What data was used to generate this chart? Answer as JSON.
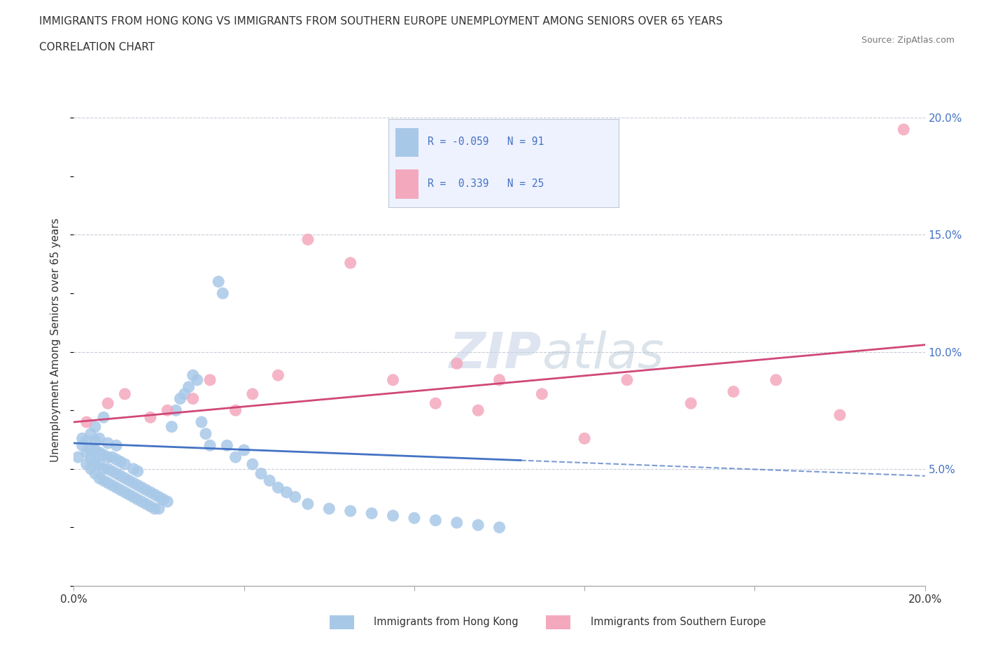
{
  "title_line1": "IMMIGRANTS FROM HONG KONG VS IMMIGRANTS FROM SOUTHERN EUROPE UNEMPLOYMENT AMONG SENIORS OVER 65 YEARS",
  "title_line2": "CORRELATION CHART",
  "source_text": "Source: ZipAtlas.com",
  "ylabel": "Unemployment Among Seniors over 65 years",
  "xlim": [
    0.0,
    0.2
  ],
  "ylim": [
    0.0,
    0.21
  ],
  "x_ticks": [
    0.0,
    0.04,
    0.08,
    0.12,
    0.16,
    0.2
  ],
  "x_tick_labels": [
    "0.0%",
    "",
    "",
    "",
    "",
    "20.0%"
  ],
  "y_ticks_right": [
    0.05,
    0.1,
    0.15,
    0.2
  ],
  "y_tick_labels_right": [
    "5.0%",
    "10.0%",
    "15.0%",
    "20.0%"
  ],
  "hk_color": "#a8c8e8",
  "se_color": "#f4a8be",
  "hk_line_color": "#4472c4",
  "se_line_color": "#d04878",
  "hk_R": -0.059,
  "hk_N": 91,
  "se_R": 0.339,
  "se_N": 25,
  "watermark_zip": "ZIP",
  "watermark_atlas": "atlas",
  "legend_bg": "#eef2ff",
  "background_color": "#ffffff",
  "grid_color": "#b0b8c8",
  "hk_scatter_x": [
    0.001,
    0.002,
    0.002,
    0.003,
    0.003,
    0.003,
    0.004,
    0.004,
    0.004,
    0.004,
    0.005,
    0.005,
    0.005,
    0.005,
    0.005,
    0.006,
    0.006,
    0.006,
    0.006,
    0.007,
    0.007,
    0.007,
    0.007,
    0.008,
    0.008,
    0.008,
    0.008,
    0.009,
    0.009,
    0.009,
    0.01,
    0.01,
    0.01,
    0.01,
    0.011,
    0.011,
    0.011,
    0.012,
    0.012,
    0.012,
    0.013,
    0.013,
    0.014,
    0.014,
    0.014,
    0.015,
    0.015,
    0.015,
    0.016,
    0.016,
    0.017,
    0.017,
    0.018,
    0.018,
    0.019,
    0.019,
    0.02,
    0.02,
    0.021,
    0.022,
    0.023,
    0.024,
    0.025,
    0.026,
    0.027,
    0.028,
    0.029,
    0.03,
    0.031,
    0.032,
    0.034,
    0.035,
    0.036,
    0.038,
    0.04,
    0.042,
    0.044,
    0.046,
    0.048,
    0.05,
    0.052,
    0.055,
    0.06,
    0.065,
    0.07,
    0.075,
    0.08,
    0.085,
    0.09,
    0.095,
    0.1
  ],
  "hk_scatter_y": [
    0.055,
    0.06,
    0.063,
    0.052,
    0.057,
    0.062,
    0.05,
    0.054,
    0.058,
    0.065,
    0.048,
    0.053,
    0.058,
    0.062,
    0.068,
    0.046,
    0.052,
    0.057,
    0.063,
    0.045,
    0.05,
    0.056,
    0.072,
    0.044,
    0.05,
    0.055,
    0.061,
    0.043,
    0.049,
    0.055,
    0.042,
    0.048,
    0.054,
    0.06,
    0.041,
    0.047,
    0.053,
    0.04,
    0.046,
    0.052,
    0.039,
    0.045,
    0.038,
    0.044,
    0.05,
    0.037,
    0.043,
    0.049,
    0.036,
    0.042,
    0.035,
    0.041,
    0.034,
    0.04,
    0.033,
    0.039,
    0.033,
    0.038,
    0.037,
    0.036,
    0.068,
    0.075,
    0.08,
    0.082,
    0.085,
    0.09,
    0.088,
    0.07,
    0.065,
    0.06,
    0.13,
    0.125,
    0.06,
    0.055,
    0.058,
    0.052,
    0.048,
    0.045,
    0.042,
    0.04,
    0.038,
    0.035,
    0.033,
    0.032,
    0.031,
    0.03,
    0.029,
    0.028,
    0.027,
    0.026,
    0.025
  ],
  "se_scatter_x": [
    0.003,
    0.008,
    0.012,
    0.018,
    0.022,
    0.028,
    0.032,
    0.038,
    0.042,
    0.048,
    0.055,
    0.065,
    0.075,
    0.085,
    0.09,
    0.095,
    0.1,
    0.11,
    0.12,
    0.13,
    0.145,
    0.155,
    0.165,
    0.18,
    0.195
  ],
  "se_scatter_y": [
    0.07,
    0.078,
    0.082,
    0.072,
    0.075,
    0.08,
    0.088,
    0.075,
    0.082,
    0.09,
    0.148,
    0.138,
    0.088,
    0.078,
    0.095,
    0.075,
    0.088,
    0.082,
    0.063,
    0.088,
    0.078,
    0.083,
    0.088,
    0.073,
    0.195
  ],
  "hk_trend_x": [
    0.0,
    0.2
  ],
  "hk_trend_y": [
    0.061,
    0.047
  ],
  "se_trend_x": [
    0.0,
    0.2
  ],
  "se_trend_y": [
    0.07,
    0.103
  ]
}
